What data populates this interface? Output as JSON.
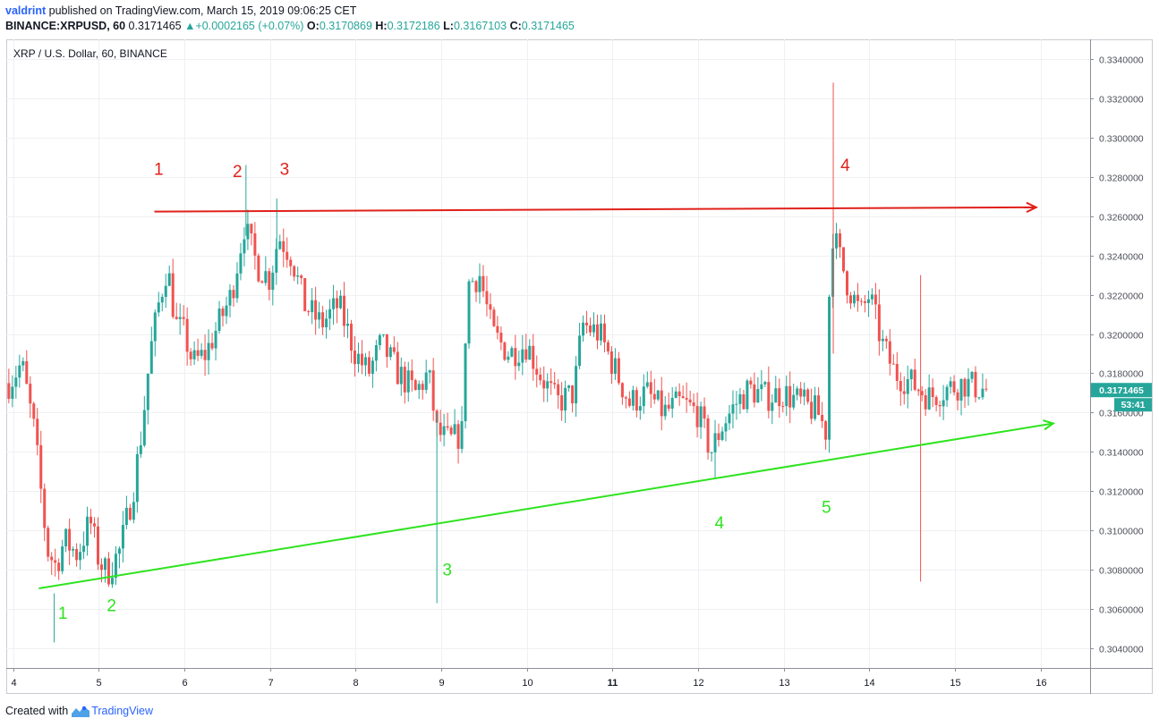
{
  "header": {
    "author": "valdrint",
    "published_text": "published on TradingView.com, March 15, 2019 09:06:25 CET",
    "symbol": "BINANCE:XRPUSD, 60",
    "last": "0.3171465",
    "change": "+0.0002165 (+0.07%)",
    "o_label": "O:",
    "o_value": "0.3170869",
    "h_label": "H:",
    "h_value": "0.3172186",
    "l_label": "L:",
    "l_value": "0.3167103",
    "c_label": "C:",
    "c_value": "0.3171465"
  },
  "footer": {
    "created_with": "Created with",
    "brand": "TradingView"
  },
  "colors": {
    "up": "#26a69a",
    "down": "#ef5350",
    "resistance": "#e0211b",
    "support": "#2ee31f",
    "grid": "#eef0f3",
    "axis": "#8c8f96"
  },
  "chart_data": {
    "type": "candlestick",
    "title": "XRP / U.S. Dollar, 60, BINANCE",
    "x_ticks": [
      {
        "label": "4",
        "x": 4
      },
      {
        "label": "5",
        "x": 5
      },
      {
        "label": "6",
        "x": 6
      },
      {
        "label": "7",
        "x": 7
      },
      {
        "label": "8",
        "x": 8
      },
      {
        "label": "9",
        "x": 9
      },
      {
        "label": "10",
        "x": 10
      },
      {
        "label": "11",
        "x": 11,
        "bold": true
      },
      {
        "label": "12",
        "x": 12
      },
      {
        "label": "13",
        "x": 13
      },
      {
        "label": "14",
        "x": 14
      },
      {
        "label": "15",
        "x": 15
      },
      {
        "label": "16",
        "x": 16
      }
    ],
    "y_ticks": [
      "0.3340000",
      "0.3320000",
      "0.3300000",
      "0.3280000",
      "0.3260000",
      "0.3240000",
      "0.3220000",
      "0.3200000",
      "0.3180000",
      "0.3160000",
      "0.3140000",
      "0.3120000",
      "0.3100000",
      "0.3080000",
      "0.3060000",
      "0.3040000"
    ],
    "ylim": [
      0.303,
      0.335
    ],
    "xlim": [
      3.92,
      16.58
    ],
    "price_label": "0.3171465",
    "countdown_label": "53:41",
    "path_points": [
      [
        3.95,
        0.3175
      ],
      [
        4.1,
        0.3185
      ],
      [
        4.25,
        0.315
      ],
      [
        4.4,
        0.309
      ],
      [
        4.5,
        0.3082
      ],
      [
        4.6,
        0.3095
      ],
      [
        4.75,
        0.3088
      ],
      [
        4.9,
        0.3105
      ],
      [
        5.0,
        0.3085
      ],
      [
        5.1,
        0.3078
      ],
      [
        5.25,
        0.309
      ],
      [
        5.4,
        0.312
      ],
      [
        5.5,
        0.315
      ],
      [
        5.6,
        0.319
      ],
      [
        5.7,
        0.3215
      ],
      [
        5.8,
        0.3235
      ],
      [
        5.9,
        0.3205
      ],
      [
        6.0,
        0.32
      ],
      [
        6.1,
        0.3185
      ],
      [
        6.25,
        0.319
      ],
      [
        6.4,
        0.3205
      ],
      [
        6.55,
        0.322
      ],
      [
        6.7,
        0.3255
      ],
      [
        6.85,
        0.3235
      ],
      [
        7.0,
        0.3228
      ],
      [
        7.1,
        0.325
      ],
      [
        7.25,
        0.324
      ],
      [
        7.4,
        0.3215
      ],
      [
        7.6,
        0.3205
      ],
      [
        7.8,
        0.3215
      ],
      [
        8.0,
        0.319
      ],
      [
        8.15,
        0.318
      ],
      [
        8.3,
        0.3195
      ],
      [
        8.5,
        0.318
      ],
      [
        8.7,
        0.317
      ],
      [
        8.85,
        0.318
      ],
      [
        8.95,
        0.315
      ],
      [
        9.1,
        0.3145
      ],
      [
        9.25,
        0.315
      ],
      [
        9.3,
        0.3225
      ],
      [
        9.45,
        0.323
      ],
      [
        9.6,
        0.32
      ],
      [
        9.8,
        0.319
      ],
      [
        10.0,
        0.3195
      ],
      [
        10.15,
        0.318
      ],
      [
        10.35,
        0.3165
      ],
      [
        10.55,
        0.317
      ],
      [
        10.65,
        0.3205
      ],
      [
        10.85,
        0.32
      ],
      [
        11.0,
        0.3185
      ],
      [
        11.2,
        0.3165
      ],
      [
        11.4,
        0.317
      ],
      [
        11.6,
        0.316
      ],
      [
        11.8,
        0.3165
      ],
      [
        12.0,
        0.316
      ],
      [
        12.15,
        0.314
      ],
      [
        12.3,
        0.3155
      ],
      [
        12.45,
        0.3165
      ],
      [
        12.6,
        0.3172
      ],
      [
        12.8,
        0.3168
      ],
      [
        13.0,
        0.317
      ],
      [
        13.2,
        0.3165
      ],
      [
        13.4,
        0.316
      ],
      [
        13.5,
        0.315
      ],
      [
        13.55,
        0.3255
      ],
      [
        13.65,
        0.324
      ],
      [
        13.75,
        0.3225
      ],
      [
        13.9,
        0.321
      ],
      [
        14.0,
        0.322
      ],
      [
        14.15,
        0.3195
      ],
      [
        14.3,
        0.318
      ],
      [
        14.5,
        0.3175
      ],
      [
        14.7,
        0.3168
      ],
      [
        14.9,
        0.3172
      ],
      [
        15.1,
        0.3175
      ],
      [
        15.25,
        0.3173
      ],
      [
        15.4,
        0.3171
      ]
    ],
    "spikes": [
      {
        "x": 4.48,
        "high": 0.3068,
        "low": 0.3043
      },
      {
        "x": 5.2,
        "high": 0.3092,
        "low": 0.3073
      },
      {
        "x": 6.72,
        "high": 0.3286,
        "low": 0.325
      },
      {
        "x": 7.08,
        "high": 0.3269,
        "low": 0.324
      },
      {
        "x": 8.95,
        "high": 0.316,
        "low": 0.3063
      },
      {
        "x": 12.2,
        "high": 0.315,
        "low": 0.3127
      },
      {
        "x": 13.58,
        "high": 0.3328,
        "low": 0.319
      },
      {
        "x": 14.6,
        "high": 0.323,
        "low": 0.3074
      }
    ],
    "resistance_line": {
      "x1": 5.65,
      "y1": 0.32623,
      "x2": 15.95,
      "y2": 0.32645
    },
    "support_line": {
      "x1": 4.3,
      "y1": 0.30705,
      "x2": 16.15,
      "y2": 0.31545
    },
    "annotations": [
      {
        "text": "1",
        "x": 5.7,
        "y": 0.3281,
        "color": "red"
      },
      {
        "text": "2",
        "x": 6.62,
        "y": 0.328,
        "color": "red"
      },
      {
        "text": "3",
        "x": 7.17,
        "y": 0.3281,
        "color": "red"
      },
      {
        "text": "4",
        "x": 13.72,
        "y": 0.3283,
        "color": "red"
      },
      {
        "text": "1",
        "x": 4.58,
        "y": 0.3055,
        "color": "green"
      },
      {
        "text": "2",
        "x": 5.15,
        "y": 0.3059,
        "color": "green"
      },
      {
        "text": "3",
        "x": 9.07,
        "y": 0.3077,
        "color": "green"
      },
      {
        "text": "4",
        "x": 12.25,
        "y": 0.3101,
        "color": "green"
      },
      {
        "text": "5",
        "x": 13.5,
        "y": 0.3109,
        "color": "green"
      }
    ]
  }
}
